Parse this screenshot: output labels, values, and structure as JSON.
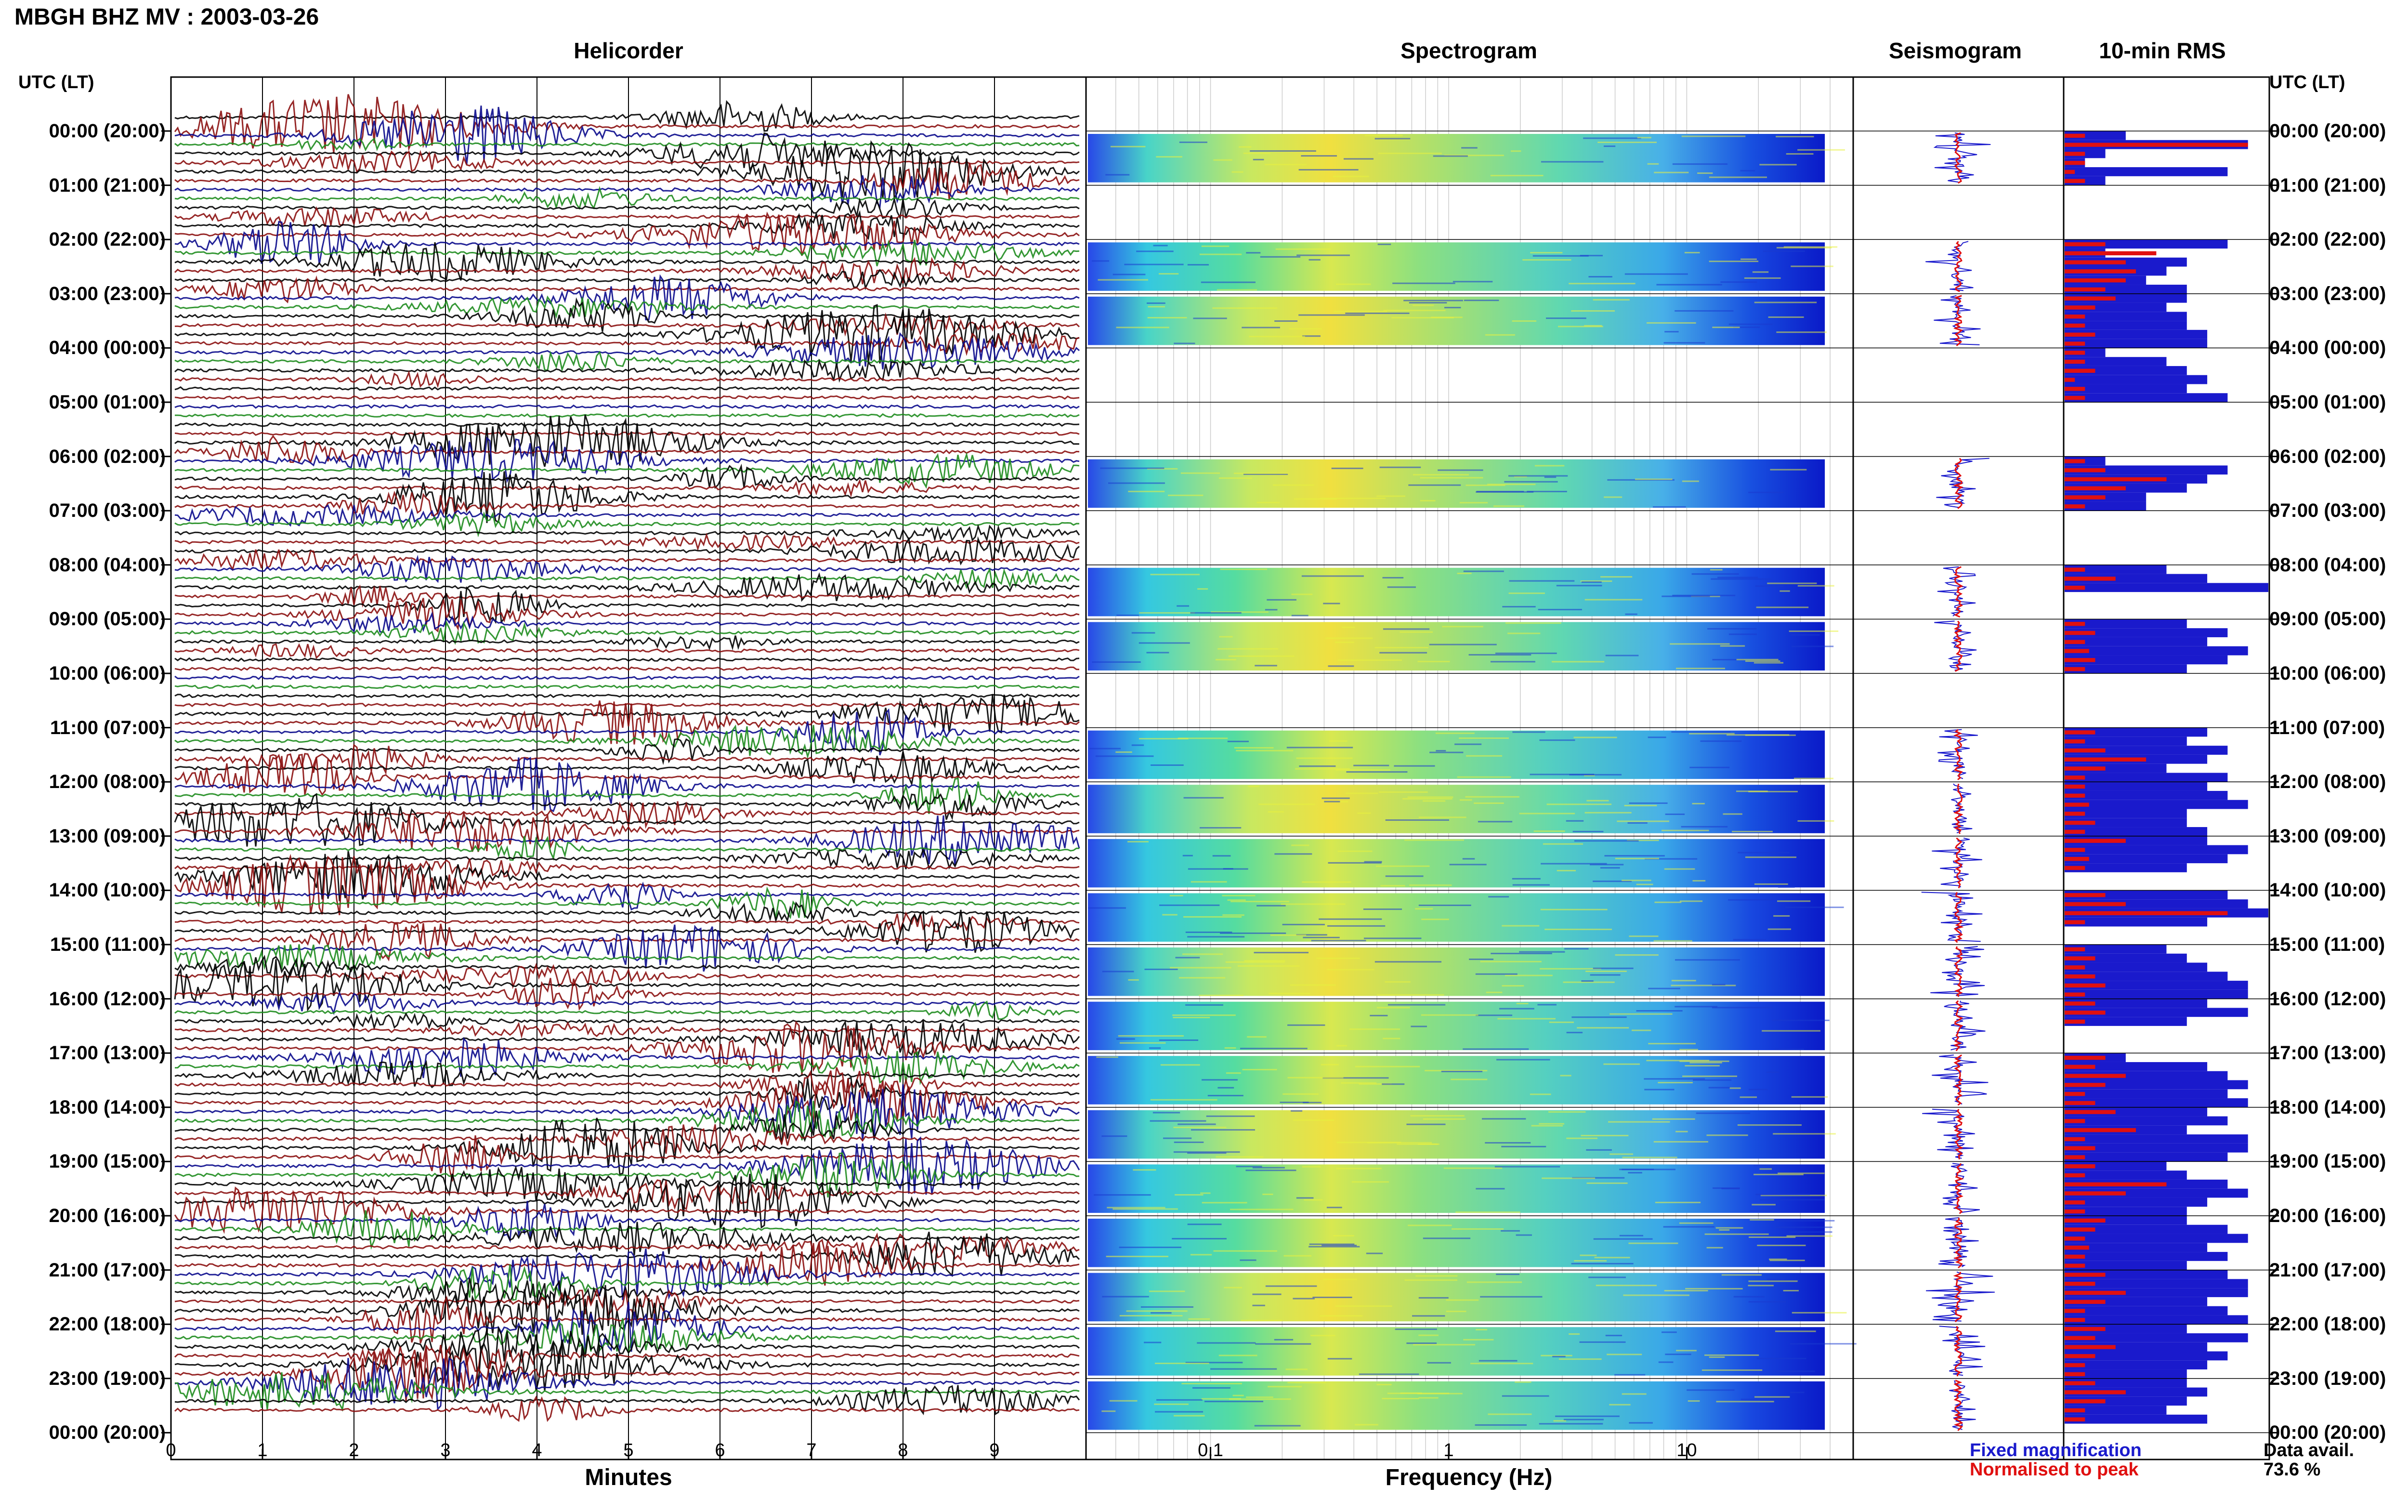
{
  "title": "MBGH BHZ MV : 2003-03-26",
  "panels": {
    "helicorder": "Helicorder",
    "spectrogram": "Spectrogram",
    "seismogram": "Seismogram",
    "rms": "10-min RMS"
  },
  "time_axis_header": "UTC (LT)",
  "time_labels": [
    "00:00 (20:00)",
    "01:00 (21:00)",
    "02:00 (22:00)",
    "03:00 (23:00)",
    "04:00 (00:00)",
    "05:00 (01:00)",
    "06:00 (02:00)",
    "07:00 (03:00)",
    "08:00 (04:00)",
    "09:00 (05:00)",
    "10:00 (06:00)",
    "11:00 (07:00)",
    "12:00 (08:00)",
    "13:00 (09:00)",
    "14:00 (10:00)",
    "15:00 (11:00)",
    "16:00 (12:00)",
    "17:00 (13:00)",
    "18:00 (14:00)",
    "19:00 (15:00)",
    "20:00 (16:00)",
    "21:00 (17:00)",
    "22:00 (18:00)",
    "23:00 (19:00)",
    "00:00 (20:00)"
  ],
  "legend": {
    "fixed": "Fixed magnification",
    "normalised": "Normalised to peak",
    "fixed_color": "#1a1acc",
    "normalised_color": "#e01010"
  },
  "data_availability": {
    "label": "Data avail.",
    "value": "73.6 %"
  },
  "chart_data": [
    {
      "type": "line",
      "panel": "Helicorder",
      "xlabel": "Minutes",
      "xlim": [
        0,
        10
      ],
      "x_ticks": [
        "0",
        "1",
        "2",
        "3",
        "4",
        "5",
        "6",
        "7",
        "8",
        "9"
      ],
      "trace_colors": [
        "#000000",
        "#8b1010",
        "#0a0a8c",
        "#1e8c1e"
      ],
      "rows_per_hour": 6,
      "event_sizes": [
        [
          0.5,
          1.0,
          1.0,
          0.2,
          0.6,
          0.3
        ],
        [
          0.9,
          0.6,
          0.5,
          0.3,
          0.3,
          0.3
        ],
        [
          0.4,
          0.7,
          0.8,
          0.4,
          0.6,
          0.4
        ],
        [
          0.3,
          0.4,
          0.7,
          0.3,
          0.5,
          0.3
        ],
        [
          0.9,
          0.3,
          0.6,
          0.3,
          0.3,
          0.2
        ],
        [
          0.0,
          0.0,
          0.0,
          0.0,
          0.0,
          0.0
        ],
        [
          0.9,
          0.5,
          0.7,
          0.5,
          0.4,
          0.2
        ],
        [
          0.8,
          0.4,
          0.3,
          0.3,
          0.2,
          0.2
        ],
        [
          0.4,
          0.3,
          0.4,
          0.3,
          0.4,
          0.3
        ],
        [
          0.6,
          0.5,
          0.3,
          0.3,
          0.2,
          0.2
        ],
        [
          0.0,
          0.0,
          0.0,
          0.0,
          0.0,
          0.0
        ],
        [
          0.6,
          0.7,
          0.8,
          0.5,
          0.4,
          0.5
        ],
        [
          0.5,
          0.7,
          0.9,
          0.6,
          0.5,
          0.4
        ],
        [
          0.9,
          0.7,
          0.8,
          0.4,
          0.3,
          0.3
        ],
        [
          0.8,
          1.0,
          0.6,
          0.5,
          0.3,
          0.3
        ],
        [
          0.7,
          0.6,
          0.8,
          0.4,
          0.3,
          0.3
        ],
        [
          0.8,
          0.5,
          0.3,
          0.3,
          0.2,
          0.2
        ],
        [
          0.6,
          0.9,
          0.7,
          0.5,
          0.4,
          0.5
        ],
        [
          0.7,
          0.8,
          0.9,
          0.6,
          0.6,
          0.5
        ],
        [
          1.0,
          0.8,
          0.9,
          0.7,
          0.5,
          0.5
        ],
        [
          0.9,
          0.8,
          0.7,
          0.6,
          0.5,
          0.4
        ],
        [
          0.8,
          0.7,
          0.8,
          0.6,
          0.5,
          0.5
        ],
        [
          0.9,
          0.8,
          0.9,
          0.6,
          0.6,
          0.5
        ],
        [
          0.8,
          0.9,
          0.9,
          0.6,
          0.5,
          0.4
        ]
      ]
    },
    {
      "type": "heatmap",
      "panel": "Spectrogram",
      "xlabel": "Frequency (Hz)",
      "x_scale": "log",
      "xlim": [
        0.03,
        50
      ],
      "x_ticks": [
        0.1,
        1,
        10
      ],
      "x_tick_labels": [
        "0.1",
        "1",
        "10"
      ],
      "freq_max_data": 38,
      "hours_with_data": [
        0,
        2,
        3,
        6,
        8,
        9,
        11,
        12,
        13,
        14,
        15,
        16,
        17,
        18,
        19,
        20,
        21,
        22,
        23
      ]
    },
    {
      "type": "line",
      "panel": "Seismogram",
      "hours_with_data": [
        0,
        2,
        3,
        6,
        8,
        9,
        11,
        12,
        13,
        14,
        15,
        16,
        17,
        18,
        19,
        20,
        21,
        22,
        23
      ]
    },
    {
      "type": "bar",
      "panel": "10-min RMS",
      "orientation": "horizontal",
      "rows_per_hour": 6,
      "fixed_magnification": [
        [
          0.3,
          0.9,
          0.2,
          0.1,
          0.8,
          0.2
        ],
        [
          0,
          0,
          0,
          0,
          0,
          0
        ],
        [
          0.8,
          0.2,
          0.6,
          0.5,
          0.4,
          0.6
        ],
        [
          0.6,
          0.5,
          0.6,
          0.6,
          0.7,
          0.7
        ],
        [
          0.2,
          0.5,
          0.6,
          0.7,
          0.6,
          0.8
        ],
        [
          0,
          0,
          0,
          0,
          0,
          0
        ],
        [
          0.2,
          0.8,
          0.7,
          0.6,
          0.4,
          0.4
        ],
        [
          0,
          0,
          0,
          0,
          0,
          0
        ],
        [
          0.5,
          0.7,
          1.0,
          0,
          0,
          0
        ],
        [
          0.6,
          0.8,
          0.7,
          0.9,
          0.8,
          0.6
        ],
        [
          0,
          0,
          0,
          0,
          0,
          0
        ],
        [
          0.7,
          0.6,
          0.8,
          0.7,
          0.5,
          0.8
        ],
        [
          0.7,
          0.8,
          0.9,
          0.6,
          0.6,
          0.7
        ],
        [
          0.7,
          0.9,
          0.8,
          0.6,
          0,
          0
        ],
        [
          0.8,
          0.9,
          1.0,
          0.7,
          0,
          0
        ],
        [
          0.5,
          0.6,
          0.7,
          0.8,
          0.9,
          0.9
        ],
        [
          0.7,
          0.9,
          0.6,
          0,
          0,
          0
        ],
        [
          0.3,
          0.7,
          0.8,
          0.9,
          0.8,
          0.9
        ],
        [
          0.7,
          0.8,
          0.6,
          0.9,
          0.9,
          0.8
        ],
        [
          0.5,
          0.6,
          0.8,
          0.9,
          0.7,
          0.6
        ],
        [
          0.6,
          0.8,
          0.9,
          0.7,
          0.8,
          0.6
        ],
        [
          0.8,
          0.9,
          0.9,
          0.7,
          0.8,
          0.9
        ],
        [
          0.6,
          0.9,
          0.7,
          0.8,
          0.7,
          0.6
        ],
        [
          0.6,
          0.7,
          0.6,
          0.5,
          0.7,
          0
        ]
      ],
      "normalised_to_peak": [
        [
          0.1,
          0.9,
          0.1,
          0.1,
          0.05,
          0.1
        ],
        [
          0,
          0,
          0,
          0,
          0,
          0
        ],
        [
          0.2,
          0.45,
          0.3,
          0.35,
          0.3,
          0.2
        ],
        [
          0.25,
          0.15,
          0.1,
          0.1,
          0.15,
          0.1
        ],
        [
          0.1,
          0.1,
          0.15,
          0.05,
          0.1,
          0.1
        ],
        [
          0,
          0,
          0,
          0,
          0,
          0
        ],
        [
          0.1,
          0.2,
          0.5,
          0.3,
          0.2,
          0.1
        ],
        [
          0,
          0,
          0,
          0,
          0,
          0
        ],
        [
          0.1,
          0.25,
          0.1,
          0,
          0,
          0
        ],
        [
          0.1,
          0.15,
          0.1,
          0.12,
          0.15,
          0.1
        ],
        [
          0,
          0,
          0,
          0,
          0,
          0
        ],
        [
          0.15,
          0.1,
          0.2,
          0.4,
          0.2,
          0.1
        ],
        [
          0.1,
          0.1,
          0.12,
          0.1,
          0.15,
          0.1
        ],
        [
          0.3,
          0.1,
          0.12,
          0.1,
          0,
          0
        ],
        [
          0.2,
          0.3,
          0.8,
          0.1,
          0,
          0
        ],
        [
          0.1,
          0.15,
          0.1,
          0.15,
          0.2,
          0.1
        ],
        [
          0.15,
          0.2,
          0.1,
          0,
          0,
          0
        ],
        [
          0.2,
          0.15,
          0.3,
          0.2,
          0.1,
          0.15
        ],
        [
          0.25,
          0.1,
          0.35,
          0.1,
          0.15,
          0.1
        ],
        [
          0.15,
          0.1,
          0.5,
          0.3,
          0.1,
          0.1
        ],
        [
          0.2,
          0.15,
          0.1,
          0.12,
          0.1,
          0.1
        ],
        [
          0.2,
          0.15,
          0.3,
          0.2,
          0.1,
          0.1
        ],
        [
          0.2,
          0.15,
          0.25,
          0.15,
          0.1,
          0.1
        ],
        [
          0.15,
          0.3,
          0.2,
          0.1,
          0.1,
          0
        ]
      ]
    }
  ]
}
